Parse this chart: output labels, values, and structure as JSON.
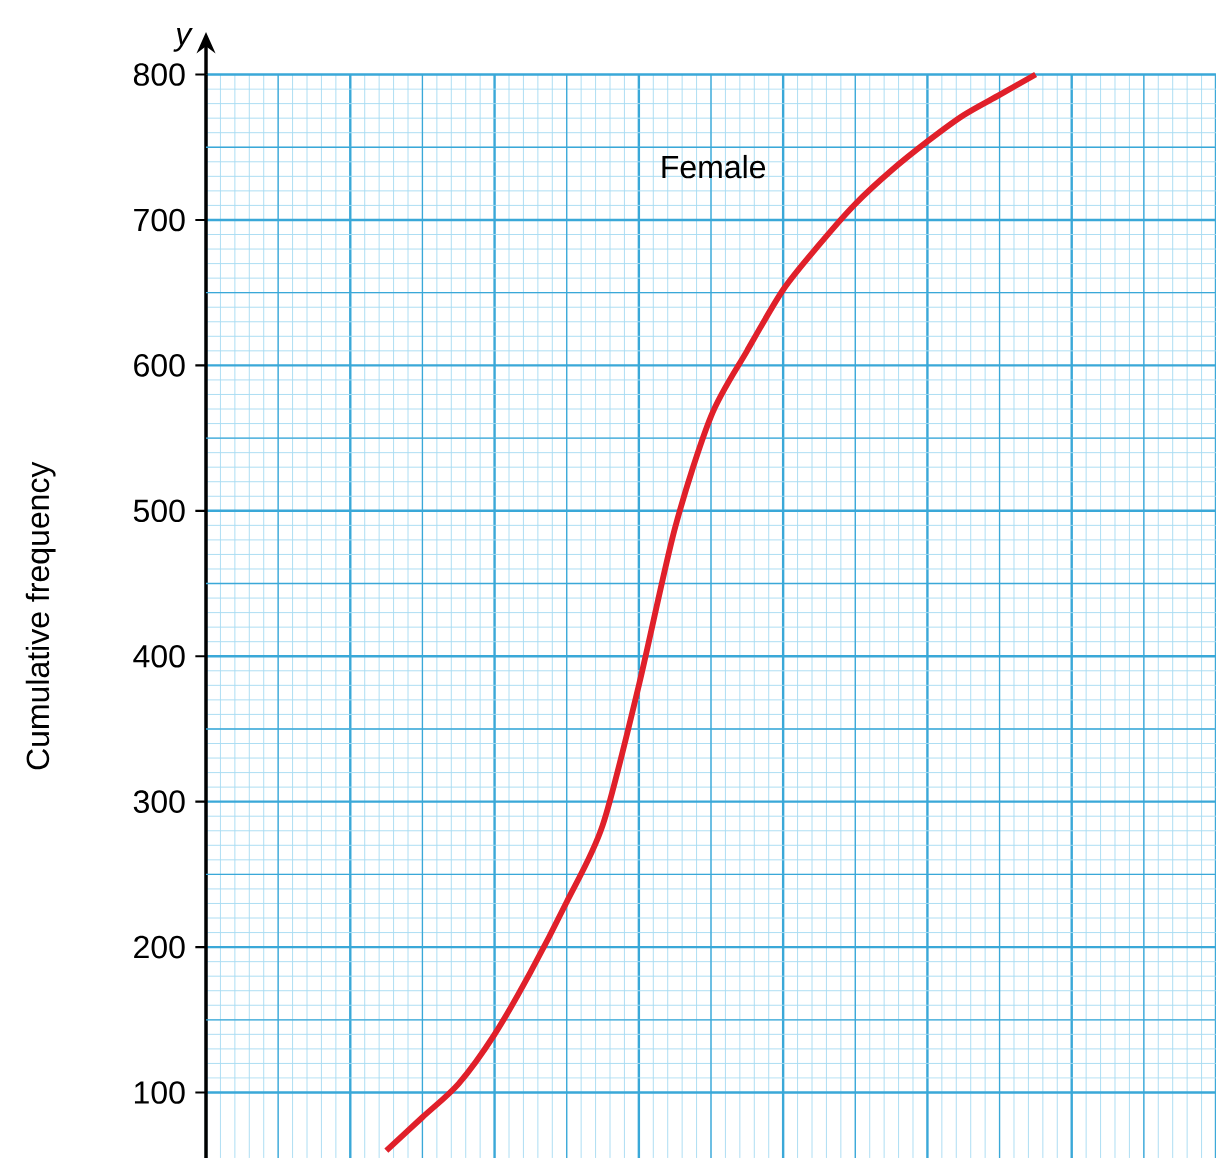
{
  "chart_data": {
    "type": "line",
    "ylabel": "Cumulative frequency",
    "annotations": [
      "y"
    ],
    "categories": [
      null,
      null,
      null,
      null,
      null,
      null,
      null,
      null,
      null,
      null,
      null,
      null,
      null,
      null,
      null,
      null,
      null,
      null,
      null,
      null,
      null,
      null,
      null,
      null,
      null,
      null,
      null,
      null,
      null
    ],
    "series": [
      {
        "name": "Female",
        "color": "#e0202a",
        "values": [
          null,
          null,
          null,
          null,
          null,
          60,
          83,
          106,
          140,
          183,
          231,
          284,
          380,
          488,
          565,
          610,
          652,
          683,
          711,
          734,
          754,
          772,
          786,
          800,
          null,
          null,
          null,
          null,
          null
        ]
      }
    ],
    "ylim": [
      55,
      800
    ],
    "yticks": [
      100,
      200,
      300,
      400,
      500,
      600,
      700,
      800
    ],
    "grid": true,
    "tick_labels": "y",
    "marker": "none",
    "line_style": "solid"
  }
}
